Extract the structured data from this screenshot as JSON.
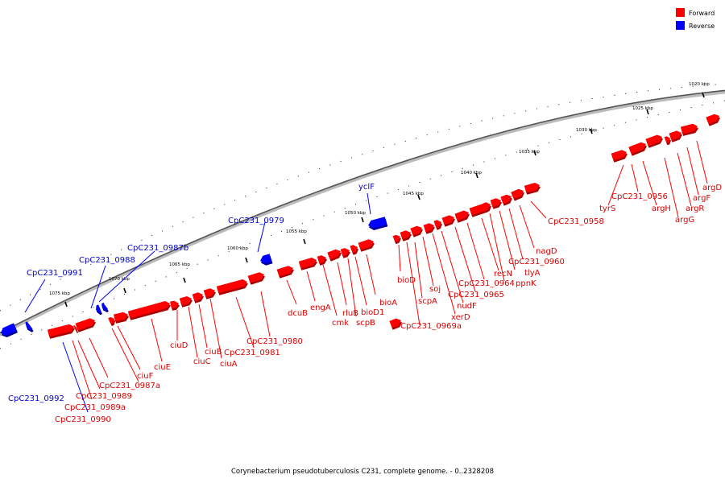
{
  "legend": {
    "forward": {
      "label": "Forward",
      "color": "#ff0000"
    },
    "reverse": {
      "label": "Reverse",
      "color": "#0000ff"
    }
  },
  "caption": "Corynebacterium pseudotuberculosis C231, complete genome. - 0..2328208",
  "ruler": [
    {
      "label": "1020 kbp"
    },
    {
      "label": "1025 kbp"
    },
    {
      "label": "1030 kbp"
    },
    {
      "label": "1035 kbp"
    },
    {
      "label": "1040 kbp"
    },
    {
      "label": "1045 kbp"
    },
    {
      "label": "1050 kbp"
    },
    {
      "label": "1055 kbp"
    },
    {
      "label": "1060 kbp"
    },
    {
      "label": "1065 kbp"
    },
    {
      "label": "1070 kbp"
    },
    {
      "label": "1075 kbp"
    }
  ],
  "genes": [
    {
      "label": "argD",
      "strand": "forward"
    },
    {
      "label": "argF",
      "strand": "forward"
    },
    {
      "label": "argR",
      "strand": "forward"
    },
    {
      "label": "argG",
      "strand": "forward"
    },
    {
      "label": "argH",
      "strand": "forward"
    },
    {
      "label": "CpC231_0956",
      "strand": "forward"
    },
    {
      "label": "tyrS",
      "strand": "forward"
    },
    {
      "label": "CpC231_0958",
      "strand": "forward"
    },
    {
      "label": "nagD",
      "strand": "forward"
    },
    {
      "label": "CpC231_0960",
      "strand": "forward"
    },
    {
      "label": "tlyA",
      "strand": "forward"
    },
    {
      "label": "ppnK",
      "strand": "forward"
    },
    {
      "label": "recN",
      "strand": "forward"
    },
    {
      "label": "CpC231_0964",
      "strand": "forward"
    },
    {
      "label": "CpC231_0965",
      "strand": "forward"
    },
    {
      "label": "nudF",
      "strand": "forward"
    },
    {
      "label": "xerD",
      "strand": "forward"
    },
    {
      "label": "soj",
      "strand": "forward"
    },
    {
      "label": "scpA",
      "strand": "forward"
    },
    {
      "label": "CpC231_0969a",
      "strand": "forward"
    },
    {
      "label": "bioD",
      "strand": "forward"
    },
    {
      "label": "yclF",
      "strand": "reverse"
    },
    {
      "label": "bioA",
      "strand": "forward"
    },
    {
      "label": "bioD1",
      "strand": "forward"
    },
    {
      "label": "scpB",
      "strand": "forward"
    },
    {
      "label": "rluB",
      "strand": "forward"
    },
    {
      "label": "cmk",
      "strand": "forward"
    },
    {
      "label": "engA",
      "strand": "forward"
    },
    {
      "label": "dcuB",
      "strand": "forward"
    },
    {
      "label": "CpC231_0979",
      "strand": "reverse"
    },
    {
      "label": "CpC231_0980",
      "strand": "forward"
    },
    {
      "label": "CpC231_0981",
      "strand": "forward"
    },
    {
      "label": "ciuA",
      "strand": "forward"
    },
    {
      "label": "ciuB",
      "strand": "forward"
    },
    {
      "label": "ciuC",
      "strand": "forward"
    },
    {
      "label": "ciuD",
      "strand": "forward"
    },
    {
      "label": "ciuE",
      "strand": "forward"
    },
    {
      "label": "ciuF",
      "strand": "forward"
    },
    {
      "label": "CpC231_0987a",
      "strand": "forward"
    },
    {
      "label": "CpC231_0987b",
      "strand": "reverse"
    },
    {
      "label": "CpC231_0988",
      "strand": "reverse"
    },
    {
      "label": "CpC231_0989",
      "strand": "forward"
    },
    {
      "label": "CpC231_0989a",
      "strand": "forward"
    },
    {
      "label": "CpC231_0990",
      "strand": "forward"
    },
    {
      "label": "CpC231_0991",
      "strand": "reverse"
    },
    {
      "label": "CpC231_0992",
      "strand": "reverse"
    }
  ]
}
